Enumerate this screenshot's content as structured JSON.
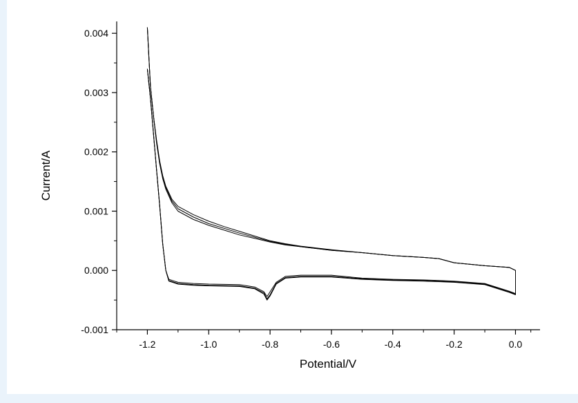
{
  "chart_data": {
    "type": "line",
    "title": "",
    "xlabel": "Potential/V",
    "ylabel": "Current/A",
    "xlim": [
      -1.3,
      0.08
    ],
    "ylim": [
      -0.001,
      0.0042
    ],
    "x_ticks": [
      "-1.2",
      "-1.0",
      "-0.8",
      "-0.6",
      "-0.4",
      "-0.2",
      "0.0"
    ],
    "y_ticks": [
      "-0.001",
      "0.000",
      "0.001",
      "0.002",
      "0.003",
      "0.004"
    ],
    "grid": false,
    "legend": "none",
    "line_color": "#000000",
    "series": [
      {
        "x": [
          -1.2,
          -1.195,
          -1.19,
          -1.18,
          -1.17,
          -1.16,
          -1.15,
          -1.14,
          -1.12,
          -1.1,
          -1.05,
          -1.0,
          -0.95,
          -0.9,
          -0.85,
          -0.8,
          -0.75,
          -0.7,
          -0.6,
          -0.5,
          -0.4,
          -0.3,
          -0.25,
          -0.2,
          -0.1,
          -0.02,
          0.0,
          0.0,
          -0.02,
          -0.1,
          -0.2,
          -0.25,
          -0.3,
          -0.4,
          -0.5,
          -0.6,
          -0.7,
          -0.75,
          -0.78,
          -0.8,
          -0.81,
          -0.82,
          -0.85,
          -0.9,
          -1.0,
          -1.05,
          -1.1,
          -1.13,
          -1.14,
          -1.15,
          -1.16,
          -1.17,
          -1.18,
          -1.19,
          -1.2
        ],
        "y": [
          0.0041,
          0.0036,
          0.0031,
          0.0026,
          0.0022,
          0.00185,
          0.0016,
          0.00142,
          0.0012,
          0.00108,
          0.00094,
          0.00083,
          0.00074,
          0.00066,
          0.00058,
          0.0005,
          0.00045,
          0.00041,
          0.00035,
          0.0003,
          0.00025,
          0.00022,
          0.0002,
          0.00013,
          8e-05,
          5e-05,
          0.0,
          -0.00039,
          -0.00035,
          -0.00022,
          -0.00018,
          -0.00017,
          -0.00016,
          -0.00015,
          -0.00013,
          -8e-05,
          -8e-05,
          -0.0001,
          -0.0002,
          -0.00036,
          -0.00044,
          -0.00036,
          -0.00028,
          -0.00024,
          -0.00023,
          -0.00022,
          -0.0002,
          -0.00015,
          0.0,
          0.00045,
          0.0011,
          0.0017,
          0.0023,
          0.0029,
          0.0034
        ]
      },
      {
        "x": [
          -1.2,
          -1.195,
          -1.19,
          -1.18,
          -1.17,
          -1.16,
          -1.15,
          -1.14,
          -1.12,
          -1.1,
          -1.05,
          -1.0,
          -0.95,
          -0.9,
          -0.85,
          -0.8,
          -0.75,
          -0.7,
          -0.6,
          -0.5,
          -0.4,
          -0.3,
          -0.25,
          -0.2,
          -0.1,
          -0.02,
          0.0,
          0.0,
          -0.02,
          -0.1,
          -0.2,
          -0.25,
          -0.3,
          -0.4,
          -0.5,
          -0.6,
          -0.7,
          -0.75,
          -0.78,
          -0.8,
          -0.81,
          -0.82,
          -0.85,
          -0.9,
          -1.0,
          -1.05,
          -1.1,
          -1.13,
          -1.14,
          -1.15,
          -1.16,
          -1.17,
          -1.18,
          -1.19,
          -1.2
        ],
        "y": [
          0.0041,
          0.0036,
          0.0031,
          0.0026,
          0.00218,
          0.00183,
          0.00158,
          0.0014,
          0.00117,
          0.00104,
          0.0009,
          0.00079,
          0.00071,
          0.00063,
          0.00056,
          0.00049,
          0.00044,
          0.0004,
          0.00034,
          0.0003,
          0.00025,
          0.00022,
          0.0002,
          0.00013,
          8e-05,
          5e-05,
          0.0,
          -0.0004,
          -0.00036,
          -0.00023,
          -0.00019,
          -0.00018,
          -0.00017,
          -0.00016,
          -0.00014,
          -0.0001,
          -0.0001,
          -0.00012,
          -0.00022,
          -0.00041,
          -0.00048,
          -0.00038,
          -0.0003,
          -0.00026,
          -0.00025,
          -0.00024,
          -0.00022,
          -0.00017,
          0.0,
          0.00045,
          0.0011,
          0.0017,
          0.0023,
          0.0029,
          0.0034
        ]
      },
      {
        "x": [
          -1.2,
          -1.195,
          -1.19,
          -1.18,
          -1.17,
          -1.16,
          -1.15,
          -1.14,
          -1.12,
          -1.1,
          -1.05,
          -1.0,
          -0.95,
          -0.9,
          -0.85,
          -0.8,
          -0.75,
          -0.7,
          -0.6,
          -0.5,
          -0.4,
          -0.3,
          -0.25,
          -0.2,
          -0.1,
          -0.02,
          0.0,
          0.0,
          -0.02,
          -0.1,
          -0.2,
          -0.25,
          -0.3,
          -0.4,
          -0.5,
          -0.6,
          -0.7,
          -0.75,
          -0.78,
          -0.8,
          -0.81,
          -0.82,
          -0.85,
          -0.9,
          -1.0,
          -1.05,
          -1.1,
          -1.13,
          -1.14,
          -1.15,
          -1.16,
          -1.17,
          -1.18,
          -1.19,
          -1.2
        ],
        "y": [
          0.0041,
          0.0036,
          0.0031,
          0.0026,
          0.00215,
          0.0018,
          0.00155,
          0.00137,
          0.00114,
          0.001,
          0.00086,
          0.00076,
          0.00068,
          0.0006,
          0.00054,
          0.00048,
          0.00043,
          0.0004,
          0.00034,
          0.0003,
          0.00025,
          0.00022,
          0.0002,
          0.00013,
          8e-05,
          5e-05,
          0.0,
          -0.00041,
          -0.00037,
          -0.00024,
          -0.0002,
          -0.00019,
          -0.00018,
          -0.00017,
          -0.00015,
          -0.00011,
          -0.00011,
          -0.00013,
          -0.00023,
          -0.00043,
          -0.0005,
          -0.0004,
          -0.00031,
          -0.00027,
          -0.00026,
          -0.00025,
          -0.00023,
          -0.00018,
          0.0,
          0.00045,
          0.0011,
          0.0017,
          0.0023,
          0.0029,
          0.0034
        ]
      }
    ]
  }
}
